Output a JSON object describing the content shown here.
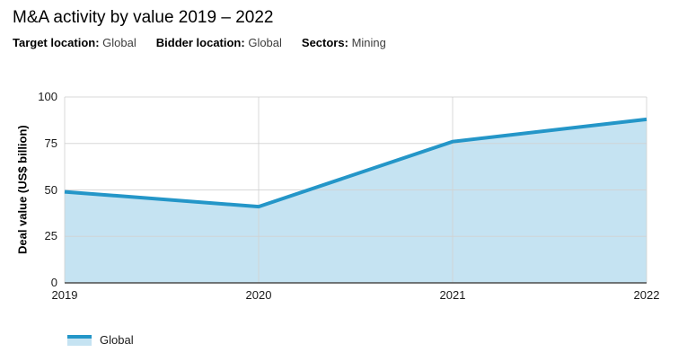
{
  "header": {
    "title": "M&A activity by value 2019 – 2022",
    "filters": [
      {
        "label": "Target location:",
        "value": "Global"
      },
      {
        "label": "Bidder location:",
        "value": "Global"
      },
      {
        "label": "Sectors:",
        "value": "Mining"
      }
    ]
  },
  "chart_data": {
    "type": "area",
    "x": [
      "2019",
      "2020",
      "2021",
      "2022"
    ],
    "series": [
      {
        "name": "Global",
        "values": [
          49,
          41,
          76,
          88
        ]
      }
    ],
    "title": "M&A activity by value 2019 – 2022",
    "xlabel": "",
    "ylabel": "Deal value (US$ billion)",
    "ylim": [
      0,
      100
    ],
    "yticks": [
      0,
      25,
      50,
      75,
      100
    ],
    "grid": true,
    "legend_position": "bottom-left",
    "colors": {
      "line": "#2496c8",
      "fill": "#c5e3f2",
      "grid": "#d2d2d2",
      "axis": "#4d4d4d"
    }
  },
  "legend": {
    "items": [
      {
        "label": "Global",
        "line_color": "#2496c8",
        "fill_color": "#c5e3f2"
      }
    ]
  }
}
